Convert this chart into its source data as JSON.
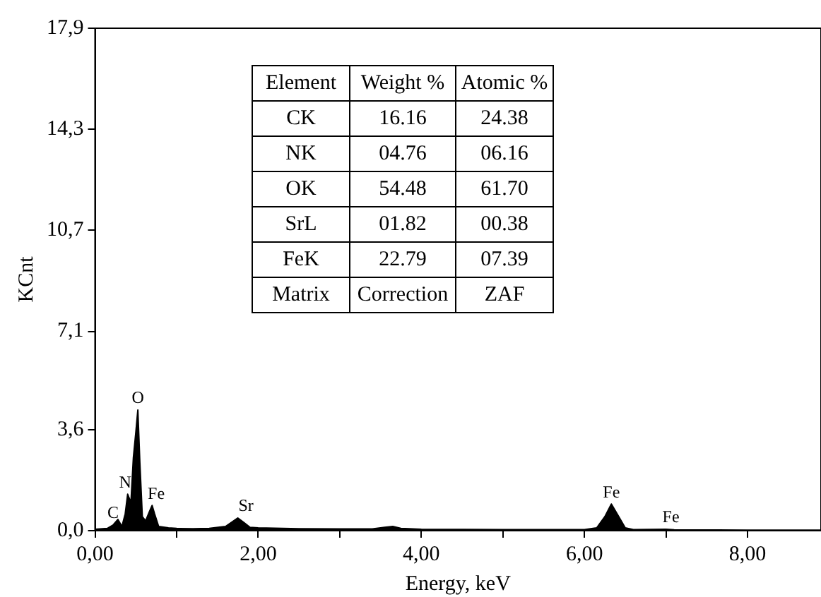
{
  "chart_data": {
    "type": "area",
    "xlabel": "Energy, keV",
    "ylabel": "KCnt",
    "x": [
      0,
      0.15,
      0.22,
      0.28,
      0.33,
      0.37,
      0.4,
      0.44,
      0.47,
      0.5,
      0.525,
      0.55,
      0.58,
      0.62,
      0.67,
      0.7,
      0.73,
      0.78,
      0.9,
      1.0,
      1.2,
      1.4,
      1.6,
      1.7,
      1.75,
      1.82,
      1.9,
      2.0,
      2.5,
      3.0,
      3.4,
      3.55,
      3.65,
      3.75,
      4.0,
      5.0,
      6.0,
      6.15,
      6.25,
      6.33,
      6.42,
      6.5,
      6.6,
      7.0,
      7.1,
      8.0,
      8.9
    ],
    "series": [
      {
        "color": "#000000",
        "values": [
          0.05,
          0.08,
          0.2,
          0.4,
          0.15,
          0.6,
          1.3,
          1.0,
          2.6,
          3.5,
          4.3,
          2.4,
          0.5,
          0.35,
          0.7,
          0.9,
          0.6,
          0.15,
          0.1,
          0.08,
          0.07,
          0.08,
          0.15,
          0.35,
          0.45,
          0.3,
          0.12,
          0.1,
          0.07,
          0.06,
          0.06,
          0.12,
          0.15,
          0.08,
          0.05,
          0.04,
          0.04,
          0.1,
          0.5,
          0.95,
          0.5,
          0.1,
          0.04,
          0.05,
          0.03,
          0.02,
          0.02
        ]
      }
    ],
    "xlim": [
      0,
      8.9
    ],
    "ylim": [
      0,
      17.9
    ],
    "xticks": [
      {
        "value": 0,
        "label": "0,00"
      },
      {
        "value": 1,
        "label": null
      },
      {
        "value": 2,
        "label": "2,00"
      },
      {
        "value": 3,
        "label": null
      },
      {
        "value": 4,
        "label": "4,00"
      },
      {
        "value": 5,
        "label": null
      },
      {
        "value": 6,
        "label": "6,00"
      },
      {
        "value": 7,
        "label": null
      },
      {
        "value": 8,
        "label": "8,00"
      }
    ],
    "yticks": [
      {
        "value": 0,
        "label": "0,0"
      },
      {
        "value": 3.6,
        "label": "3,6"
      },
      {
        "value": 7.1,
        "label": "7,1"
      },
      {
        "value": 10.7,
        "label": "10,7"
      },
      {
        "value": 14.3,
        "label": "14,3"
      },
      {
        "value": 17.9,
        "label": "17,9"
      }
    ],
    "grid": false,
    "legend": false,
    "annotations": [
      {
        "text": "C",
        "x": 0.22,
        "y": 0.2
      },
      {
        "text": "N",
        "x": 0.37,
        "y": 1.3
      },
      {
        "text": "O",
        "x": 0.525,
        "y": 4.3
      },
      {
        "text": "Fe",
        "x": 0.75,
        "y": 0.9
      },
      {
        "text": "Sr",
        "x": 1.85,
        "y": 0.45
      },
      {
        "text": "Fe",
        "x": 6.33,
        "y": 0.95
      },
      {
        "text": "Fe",
        "x": 7.06,
        "y": 0.05
      },
      "Element",
      "Weight %",
      "Atomic %",
      "CK",
      "16.16",
      "24.38",
      "NK",
      "04.76",
      "06.16",
      "OK",
      "54.48",
      "61.70",
      "SrL",
      "01.82",
      "00.38",
      "FeK",
      "22.79",
      "07.39",
      "Matrix",
      "Correction",
      "ZAF"
    ]
  }
}
